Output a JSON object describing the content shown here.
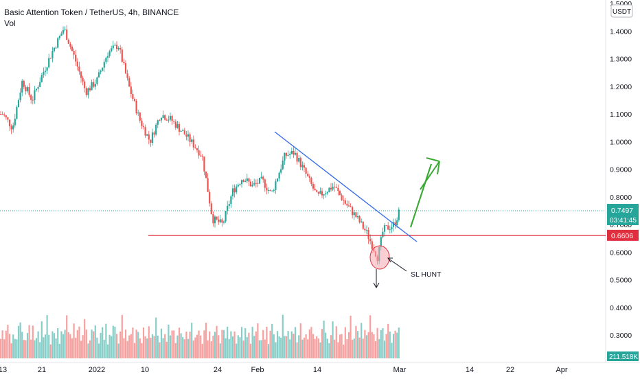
{
  "header": {
    "title": "Basic Attention Token / TetherUS, 4h, BINANCE",
    "indicator": "Vol"
  },
  "colors": {
    "up": "#26a69a",
    "down": "#ef5350",
    "trendline": "#3a6ee8",
    "support": "#e0303f",
    "arrow": "#3aa935",
    "last_price_bg": "#26a69a",
    "support_bg": "#e0303f",
    "price_line": "#26a69a"
  },
  "chart_data": {
    "type": "candlestick",
    "symbol": "Basic Attention Token / TetherUS",
    "interval": "4h",
    "exchange": "BINANCE",
    "currency": "USDT",
    "y_ticks": [
      "1.5000",
      "1.4000",
      "1.3000",
      "1.2000",
      "1.1000",
      "1.0000",
      "0.9000",
      "0.8000",
      "0.7000",
      "0.6000",
      "0.5000",
      "0.4000",
      "0.3000"
    ],
    "x_ticks": [
      "13",
      "21",
      "2022",
      "10",
      "24",
      "Feb",
      "14",
      "Mar",
      "14",
      "22",
      "Apr"
    ],
    "price_path": [
      [
        "13 Dec",
        1.1
      ],
      [
        "15 Dec",
        1.05
      ],
      [
        "17 Dec",
        1.22
      ],
      [
        "19 Dec",
        1.15
      ],
      [
        "21 Dec",
        1.24
      ],
      [
        "23 Dec",
        1.33
      ],
      [
        "25 Dec",
        1.41
      ],
      [
        "27 Dec",
        1.3
      ],
      [
        "29 Dec",
        1.18
      ],
      [
        "31 Dec",
        1.22
      ],
      [
        "2 Jan",
        1.32
      ],
      [
        "4 Jan",
        1.35
      ],
      [
        "6 Jan",
        1.2
      ],
      [
        "8 Jan",
        1.08
      ],
      [
        "10 Jan",
        1.0
      ],
      [
        "12 Jan",
        1.1
      ],
      [
        "14 Jan",
        1.08
      ],
      [
        "17 Jan",
        1.02
      ],
      [
        "20 Jan",
        0.95
      ],
      [
        "22 Jan",
        0.72
      ],
      [
        "24 Jan",
        0.7
      ],
      [
        "26 Jan",
        0.82
      ],
      [
        "28 Jan",
        0.87
      ],
      [
        "30 Jan",
        0.84
      ],
      [
        "1 Feb",
        0.86
      ],
      [
        "3 Feb",
        0.81
      ],
      [
        "6 Feb",
        0.95
      ],
      [
        "8 Feb",
        0.96
      ],
      [
        "10 Feb",
        0.9
      ],
      [
        "13 Feb",
        0.8
      ],
      [
        "16 Feb",
        0.84
      ],
      [
        "18 Feb",
        0.78
      ],
      [
        "20 Feb",
        0.73
      ],
      [
        "22 Feb",
        0.67
      ],
      [
        "24 Feb",
        0.58
      ],
      [
        "25 Feb",
        0.68
      ],
      [
        "27 Feb",
        0.7
      ],
      [
        "28 Feb",
        0.7497
      ]
    ],
    "last_price": "0.7497",
    "countdown": "03:41:45",
    "support_level": "0.6606",
    "volume_label": "211.518K",
    "annotations": {
      "sl_hunt": "SL HUNT"
    },
    "volume_bars": [
      3,
      4,
      2,
      5,
      6,
      3,
      2,
      4,
      3,
      2,
      5,
      7,
      4,
      3,
      2,
      4,
      6,
      3,
      5,
      2,
      3,
      4,
      2,
      6,
      3,
      4,
      8,
      3,
      2,
      5,
      4,
      3,
      6,
      2,
      4,
      3,
      5,
      9,
      4,
      3,
      2,
      6,
      3,
      4,
      5,
      2,
      3,
      7,
      4,
      2,
      3,
      5,
      4,
      6,
      3,
      2,
      4,
      5,
      3,
      7,
      2,
      4,
      3,
      5,
      6,
      3,
      2,
      4,
      8,
      3,
      5,
      2,
      4,
      3,
      6,
      2,
      4,
      5,
      3,
      2,
      6,
      4,
      3,
      5,
      2,
      3,
      4,
      7,
      3,
      2,
      5,
      3,
      4,
      2,
      6,
      3,
      5,
      4,
      2,
      3,
      6,
      4,
      3,
      2,
      5,
      3,
      4,
      6,
      2,
      3,
      4,
      5,
      3,
      2,
      4,
      7,
      3,
      5,
      2,
      3,
      4,
      6,
      3,
      2,
      5,
      4,
      3,
      6,
      2,
      4,
      3,
      5,
      2,
      4,
      3,
      6,
      2,
      5,
      3,
      4,
      2,
      5,
      3,
      4,
      6,
      2,
      3,
      4,
      3,
      5,
      2,
      4,
      6,
      3,
      2,
      5,
      4,
      3,
      9,
      4,
      3,
      5,
      2,
      4,
      3,
      5,
      2,
      4,
      6,
      3
    ]
  }
}
